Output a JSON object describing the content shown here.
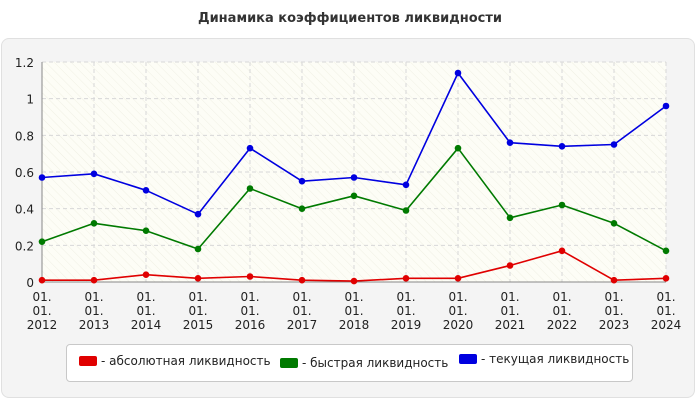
{
  "chart_data": {
    "type": "line",
    "title": "Динамика коэффициентов ликвидности",
    "xlabel": "",
    "ylabel": "",
    "x": [
      {
        "l1": "01.",
        "l2": "01.",
        "l3": "2012"
      },
      {
        "l1": "01.",
        "l2": "01.",
        "l3": "2013"
      },
      {
        "l1": "01.",
        "l2": "01.",
        "l3": "2014"
      },
      {
        "l1": "01.",
        "l2": "01.",
        "l3": "2015"
      },
      {
        "l1": "01.",
        "l2": "01.",
        "l3": "2016"
      },
      {
        "l1": "01.",
        "l2": "01.",
        "l3": "2017"
      },
      {
        "l1": "01.",
        "l2": "01.",
        "l3": "2018"
      },
      {
        "l1": "01.",
        "l2": "01.",
        "l3": "2019"
      },
      {
        "l1": "01.",
        "l2": "01.",
        "l3": "2020"
      },
      {
        "l1": "01.",
        "l2": "01.",
        "l3": "2021"
      },
      {
        "l1": "01.",
        "l2": "01.",
        "l3": "2022"
      },
      {
        "l1": "01.",
        "l2": "01.",
        "l3": "2023"
      },
      {
        "l1": "01.",
        "l2": "01.",
        "l3": "2024"
      }
    ],
    "ylim": [
      0,
      1.2
    ],
    "yticks": [
      "0",
      "0.2",
      "0.4",
      "0.6",
      "0.8",
      "1",
      "1.2"
    ],
    "grid": true,
    "legend_position": "bottom",
    "series": [
      {
        "name": "- абсолютная ликвидность",
        "color": "#e00000",
        "values": [
          0.01,
          0.01,
          0.04,
          0.02,
          0.03,
          0.01,
          0.005,
          0.02,
          0.02,
          0.09,
          0.17,
          0.01,
          0.02
        ]
      },
      {
        "name": "- быстрая ликвидность",
        "color": "#007a00",
        "values": [
          0.22,
          0.32,
          0.28,
          0.18,
          0.51,
          0.4,
          0.47,
          0.39,
          0.73,
          0.35,
          0.42,
          0.32,
          0.17
        ]
      },
      {
        "name": "- текущая ликвидность",
        "color": "#0000e0",
        "values": [
          0.57,
          0.59,
          0.5,
          0.37,
          0.73,
          0.55,
          0.57,
          0.53,
          1.14,
          0.76,
          0.74,
          0.75,
          0.96
        ]
      }
    ]
  }
}
